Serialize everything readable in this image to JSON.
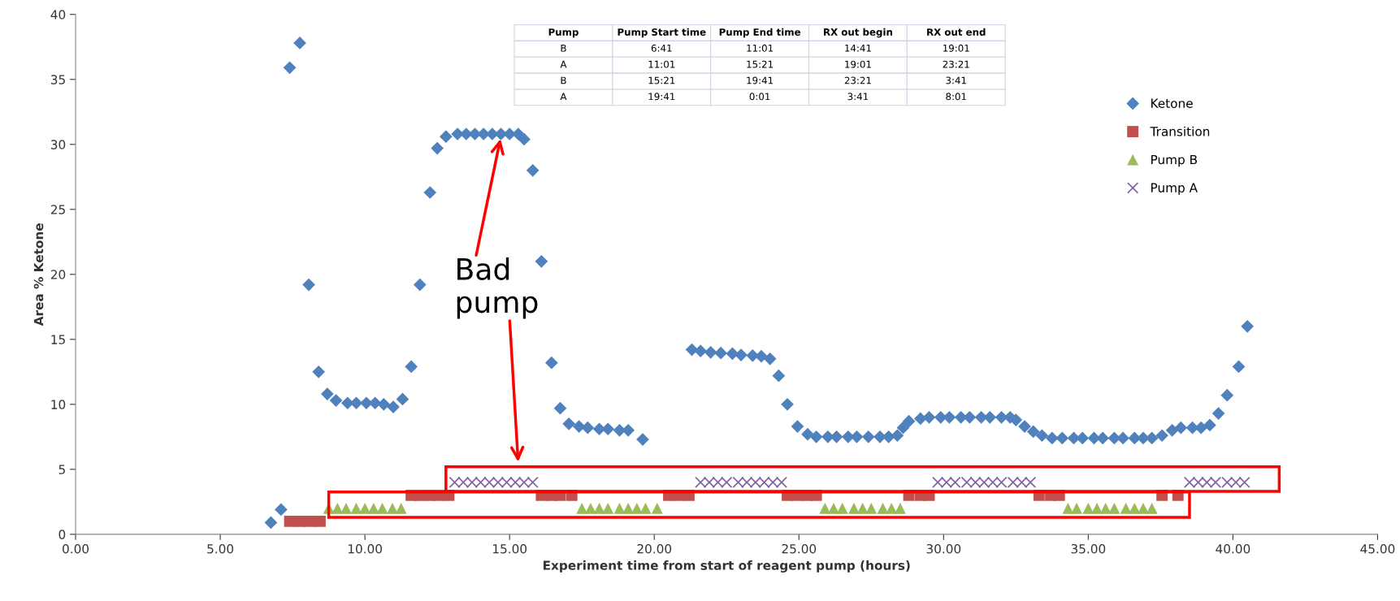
{
  "chart_data": {
    "type": "scatter",
    "xlabel": "Experiment time from start of reagent pump (hours)",
    "ylabel": "Area % Ketone",
    "xlim": [
      0,
      45
    ],
    "ylim": [
      0,
      40
    ],
    "xticks": [
      {
        "value": 0,
        "label": "0.00"
      },
      {
        "value": 5,
        "label": "5.00"
      },
      {
        "value": 10,
        "label": "10.00"
      },
      {
        "value": 15,
        "label": "15.00"
      },
      {
        "value": 20,
        "label": "20.00"
      },
      {
        "value": 25,
        "label": "25.00"
      },
      {
        "value": 30,
        "label": "30.00"
      },
      {
        "value": 35,
        "label": "35.00"
      },
      {
        "value": 40,
        "label": "40.00"
      },
      {
        "value": 45,
        "label": "45.00"
      }
    ],
    "yticks": [
      0,
      5,
      10,
      15,
      20,
      25,
      30,
      35,
      40
    ],
    "grid": false,
    "legend": "top right",
    "series": [
      {
        "name": "Ketone",
        "color": "#4f81bd",
        "marker": "diamond",
        "x": [
          6.75,
          7.1,
          7.4,
          7.75,
          8.06,
          8.4,
          8.7,
          9.0,
          9.4,
          9.7,
          10.05,
          10.35,
          10.65,
          10.98,
          11.3,
          11.6,
          11.9,
          12.25,
          12.5,
          12.8,
          13.2,
          13.5,
          13.8,
          14.1,
          14.4,
          14.7,
          15.0,
          15.3,
          15.5,
          15.8,
          16.1,
          16.45,
          16.75,
          17.05,
          17.4,
          17.7,
          18.1,
          18.4,
          18.8,
          19.1,
          19.6,
          21.3,
          21.6,
          21.95,
          22.3,
          22.7,
          23.0,
          23.4,
          23.7,
          24.0,
          24.3,
          24.6,
          24.95,
          25.3,
          25.6,
          26.0,
          26.3,
          26.7,
          27.0,
          27.4,
          27.8,
          28.1,
          28.4,
          28.6,
          28.8,
          29.2,
          29.5,
          29.9,
          30.2,
          30.6,
          30.9,
          31.3,
          31.6,
          32.0,
          32.3,
          32.5,
          32.8,
          33.1,
          33.4,
          33.75,
          34.1,
          34.5,
          34.8,
          35.2,
          35.5,
          35.9,
          36.2,
          36.6,
          36.9,
          37.2,
          37.55,
          37.9,
          38.2,
          38.6,
          38.9,
          39.2,
          39.5,
          39.8,
          40.2,
          40.5
        ],
        "values": [
          0.9,
          1.9,
          35.9,
          37.8,
          19.2,
          12.5,
          10.8,
          10.3,
          10.1,
          10.1,
          10.1,
          10.1,
          10.0,
          9.8,
          10.4,
          12.9,
          19.2,
          26.3,
          29.7,
          30.6,
          30.8,
          30.8,
          30.8,
          30.8,
          30.8,
          30.8,
          30.8,
          30.8,
          30.4,
          28.0,
          21.0,
          13.2,
          9.7,
          8.5,
          8.3,
          8.2,
          8.1,
          8.1,
          8.0,
          8.0,
          7.3,
          14.2,
          14.1,
          14.0,
          13.95,
          13.9,
          13.8,
          13.75,
          13.7,
          13.5,
          12.2,
          10.0,
          8.3,
          7.7,
          7.5,
          7.5,
          7.5,
          7.5,
          7.5,
          7.5,
          7.5,
          7.5,
          7.6,
          8.2,
          8.7,
          8.9,
          9.0,
          9.0,
          9.0,
          9.0,
          9.0,
          9.0,
          9.0,
          9.0,
          9.0,
          8.8,
          8.3,
          7.9,
          7.6,
          7.4,
          7.4,
          7.4,
          7.4,
          7.4,
          7.4,
          7.4,
          7.4,
          7.4,
          7.4,
          7.4,
          7.6,
          8.0,
          8.2,
          8.2,
          8.2,
          8.4,
          9.3,
          10.7,
          12.9,
          16.0
        ]
      },
      {
        "name": "Transition",
        "color": "#c0504d",
        "marker": "square",
        "x": [
          7.4,
          7.75,
          8.1,
          8.45,
          11.6,
          11.9,
          12.25,
          12.55,
          12.9,
          16.1,
          16.45,
          16.75,
          17.15,
          20.5,
          20.85,
          21.2,
          24.6,
          24.95,
          25.3,
          25.6,
          28.8,
          29.2,
          29.5,
          33.3,
          33.7,
          34.0,
          37.55,
          38.1
        ],
        "values": [
          1.0,
          1.0,
          1.0,
          1.0,
          3.0,
          3.0,
          3.0,
          3.0,
          3.0,
          3.0,
          3.0,
          3.0,
          3.0,
          3.0,
          3.0,
          3.0,
          3.0,
          3.0,
          3.0,
          3.0,
          3.0,
          3.0,
          3.0,
          3.0,
          3.0,
          3.0,
          3.0,
          3.0
        ]
      },
      {
        "name": "Pump B",
        "color": "#9bbb59",
        "marker": "triangle",
        "x": [
          8.75,
          9.05,
          9.35,
          9.7,
          10.0,
          10.3,
          10.6,
          10.95,
          11.25,
          17.5,
          17.8,
          18.1,
          18.4,
          18.8,
          19.1,
          19.4,
          19.7,
          20.1,
          25.9,
          26.2,
          26.5,
          26.9,
          27.2,
          27.5,
          27.9,
          28.2,
          28.5,
          34.3,
          34.6,
          35.0,
          35.3,
          35.6,
          35.9,
          36.3,
          36.6,
          36.9,
          37.2
        ],
        "values": [
          2.0,
          2.0,
          2.0,
          2.0,
          2.0,
          2.0,
          2.0,
          2.0,
          2.0,
          2.0,
          2.0,
          2.0,
          2.0,
          2.0,
          2.0,
          2.0,
          2.0,
          2.0,
          2.0,
          2.0,
          2.0,
          2.0,
          2.0,
          2.0,
          2.0,
          2.0,
          2.0,
          2.0,
          2.0,
          2.0,
          2.0,
          2.0,
          2.0,
          2.0,
          2.0,
          2.0,
          2.0
        ]
      },
      {
        "name": "Pump A",
        "color": "#8064a2",
        "marker": "cross",
        "x": [
          13.1,
          13.4,
          13.7,
          14.0,
          14.3,
          14.6,
          14.9,
          15.2,
          15.5,
          15.8,
          21.6,
          21.9,
          22.2,
          22.5,
          22.9,
          23.2,
          23.5,
          23.8,
          24.1,
          24.4,
          29.8,
          30.1,
          30.4,
          30.8,
          31.1,
          31.4,
          31.7,
          32.0,
          32.4,
          32.7,
          33.0,
          38.5,
          38.8,
          39.1,
          39.4,
          39.8,
          40.1,
          40.4
        ],
        "values": [
          4.0,
          4.0,
          4.0,
          4.0,
          4.0,
          4.0,
          4.0,
          4.0,
          4.0,
          4.0,
          4.0,
          4.0,
          4.0,
          4.0,
          4.0,
          4.0,
          4.0,
          4.0,
          4.0,
          4.0,
          4.0,
          4.0,
          4.0,
          4.0,
          4.0,
          4.0,
          4.0,
          4.0,
          4.0,
          4.0,
          4.0,
          4.0,
          4.0,
          4.0,
          4.0,
          4.0,
          4.0,
          4.0
        ]
      }
    ],
    "annotations": [
      {
        "text": "Bad pump",
        "x": 14.7,
        "y": 30.6
      },
      "Pump\tPump Start time\tPump End time\tRX out begin\tRX out end",
      "B\t6:41\t11:01\t14:41\t19:01",
      "A\t11:01\t15:21\t19:01\t23:21",
      "B\t15:21\t19:41\t23:21\t3:41",
      "A\t19:41\t0:01\t3:41\t8:01"
    ]
  }
}
